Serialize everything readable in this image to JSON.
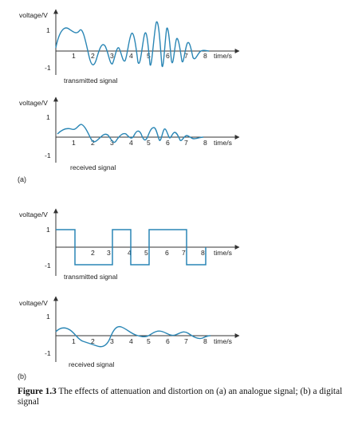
{
  "panels": [
    {
      "id": "p1",
      "y_label": "voltage/V",
      "y_ticks": [
        "1",
        "-1"
      ],
      "x_ticks": [
        "1",
        "2",
        "3",
        "4",
        "5",
        "6",
        "7",
        "8"
      ],
      "x_label": "time/s",
      "signal_label": "transmitted signal",
      "kind": "analogue"
    },
    {
      "id": "p2",
      "y_label": "voltage/V",
      "y_ticks": [
        "1",
        "-1"
      ],
      "x_ticks": [
        "1",
        "2",
        "3",
        "4",
        "5",
        "6",
        "7",
        "8"
      ],
      "x_label": "time/s",
      "signal_label": "received signal",
      "kind": "analogue"
    },
    {
      "id": "p3",
      "y_label": "voltage/V",
      "y_ticks": [
        "1",
        "-1"
      ],
      "x_ticks": [
        "2",
        "3",
        "4",
        "5",
        "6",
        "7",
        "8"
      ],
      "x_label": "time/s",
      "signal_label": "transmitted signal",
      "kind": "digital",
      "levels": [
        1,
        -1,
        -1,
        1,
        -1,
        1,
        1,
        -1
      ]
    },
    {
      "id": "p4",
      "y_label": "voltage/V",
      "y_ticks": [
        "1",
        "-1"
      ],
      "x_ticks": [
        "1",
        "2",
        "3",
        "4",
        "5",
        "6",
        "7",
        "8"
      ],
      "x_label": "time/s",
      "signal_label": "received signal",
      "kind": "digital"
    }
  ],
  "part_labels": {
    "a": "(a)",
    "b": "(b)"
  },
  "caption": {
    "figure": "Figure 1.3",
    "text": "The effects of attenuation and distortion on (a) an analogue signal; (b) a digital signal"
  },
  "colors": {
    "signal": "#2a86b5",
    "axis": "#333333"
  }
}
